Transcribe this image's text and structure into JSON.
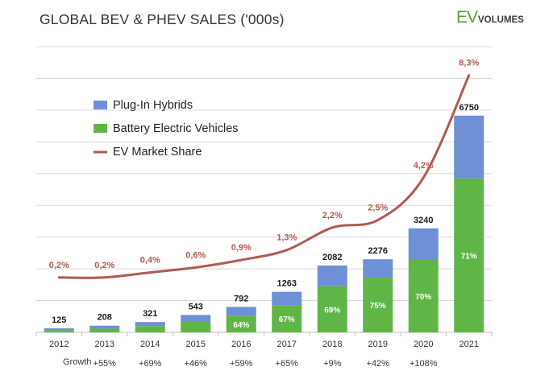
{
  "chart_data": {
    "type": "bar",
    "title": "GLOBAL BEV & PHEV SALES ('000s)",
    "stacked": true,
    "categories": [
      "2012",
      "2013",
      "2014",
      "2015",
      "2016",
      "2017",
      "2018",
      "2019",
      "2020",
      "2021"
    ],
    "totals": [
      125,
      208,
      321,
      543,
      792,
      1263,
      2082,
      2276,
      3240,
      6750
    ],
    "totals_labels": [
      "125",
      "208",
      "321",
      "543",
      "792",
      "1263",
      "2082",
      "2276",
      "3240",
      "6750"
    ],
    "bev_share_labels": [
      "",
      "",
      "",
      "",
      "64%",
      "67%",
      "69%",
      "75%",
      "70%",
      "71%"
    ],
    "bev_share": [
      0.55,
      0.55,
      0.6,
      0.6,
      0.64,
      0.67,
      0.69,
      0.75,
      0.7,
      0.71
    ],
    "series": [
      {
        "name": "Plug-In Hybrids",
        "color": "#6f8fd6"
      },
      {
        "name": "Battery Electric Vehicles",
        "color": "#5fb546"
      },
      {
        "name": "EV Market Share",
        "color": "#b15a50",
        "type": "line",
        "values": [
          0.2,
          0.2,
          0.4,
          0.6,
          0.9,
          1.3,
          2.2,
          2.5,
          4.2,
          8.3
        ],
        "labels": [
          "0,2%",
          "0,2%",
          "0,4%",
          "0,6%",
          "0,9%",
          "1,3%",
          "2,2%",
          "2,5%",
          "4,2%",
          "8,3%"
        ]
      }
    ],
    "growth_label": "Growth",
    "growth": [
      "",
      "+55%",
      "+69%",
      "+46%",
      "+59%",
      "+65%",
      "+9%",
      "+42%",
      "+108%"
    ],
    "legend_position": "top-left",
    "grid": true
  },
  "brand": {
    "ev": "EV",
    "volumes": "VOLUMES"
  }
}
